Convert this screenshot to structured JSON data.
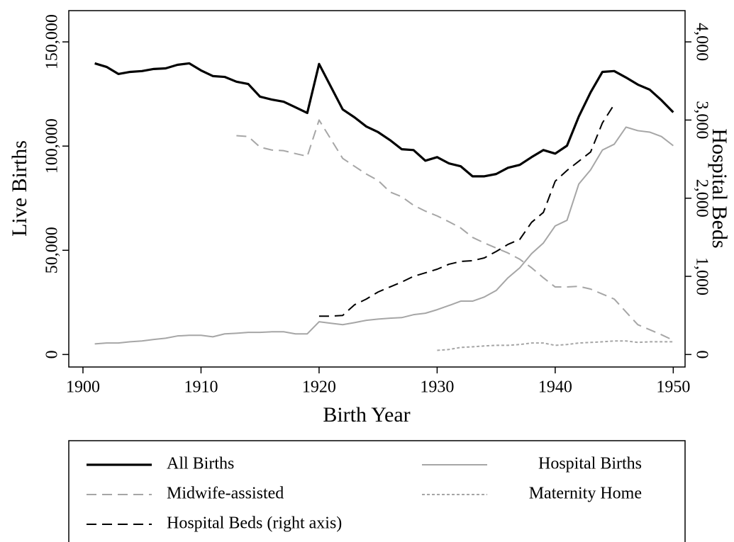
{
  "chart_data": {
    "type": "line",
    "x_label": "Birth Year",
    "y_label": "Live Births",
    "y2_label": "Hospital Beds",
    "x": [
      1901,
      1902,
      1903,
      1904,
      1905,
      1906,
      1907,
      1908,
      1909,
      1910,
      1911,
      1912,
      1913,
      1914,
      1915,
      1916,
      1917,
      1918,
      1919,
      1920,
      1921,
      1922,
      1923,
      1924,
      1925,
      1926,
      1927,
      1928,
      1929,
      1930,
      1931,
      1932,
      1933,
      1934,
      1935,
      1936,
      1937,
      1938,
      1939,
      1940,
      1941,
      1942,
      1943,
      1944,
      1945,
      1946,
      1947,
      1948,
      1949,
      1950
    ],
    "xlim": [
      1898.8,
      1951
    ],
    "xticks": [
      1900,
      1910,
      1920,
      1930,
      1940,
      1950
    ],
    "ylim": [
      -6000,
      165000
    ],
    "yticks": [
      0,
      {
        "value": 50000,
        "label": "50,000"
      },
      {
        "value": 100000,
        "label": "100,000"
      },
      {
        "value": 150000,
        "label": "150,000"
      }
    ],
    "y2lim": [
      -160,
      4400
    ],
    "y2ticks": [
      0,
      {
        "value": 1000,
        "label": "1,000"
      },
      {
        "value": 2000,
        "label": "2,000"
      },
      {
        "value": 3000,
        "label": "3,000"
      },
      {
        "value": 4000,
        "label": "4,000"
      }
    ],
    "grid": false,
    "legend": {
      "position": "bottom",
      "columns": 2
    },
    "series": [
      {
        "name": "All Births",
        "color": "#000000",
        "dash": "solid",
        "weight": "heavy",
        "values": [
          139700,
          138000,
          134600,
          135600,
          136000,
          137000,
          137300,
          139000,
          139700,
          136300,
          133600,
          133200,
          130900,
          129800,
          123700,
          122300,
          121300,
          118600,
          115900,
          139400,
          128500,
          117600,
          113800,
          109400,
          106700,
          102900,
          98500,
          98100,
          93000,
          94700,
          91700,
          90300,
          85500,
          85500,
          86600,
          89600,
          91000,
          94700,
          98100,
          96400,
          100200,
          114200,
          125800,
          135600,
          136000,
          132900,
          129500,
          127100,
          122000,
          116200
        ]
      },
      {
        "name": "Hospital Births",
        "color": "#a6a6a6",
        "dash": "solid",
        "weight": "normal",
        "values": [
          5100,
          5500,
          5500,
          6100,
          6500,
          7200,
          7800,
          8900,
          9200,
          9200,
          8500,
          9900,
          10200,
          10600,
          10600,
          10900,
          10900,
          9900,
          9900,
          15700,
          15000,
          14300,
          15300,
          16400,
          17000,
          17400,
          17700,
          19100,
          19800,
          21500,
          23500,
          25600,
          25600,
          27600,
          30700,
          36800,
          41600,
          48400,
          53500,
          61700,
          64400,
          81800,
          88600,
          98100,
          100900,
          109100,
          107400,
          106700,
          104600,
          100200
        ]
      },
      {
        "name": "Midwife-assisted",
        "color": "#a6a6a6",
        "dash": "dashed",
        "weight": "normal",
        "values": [
          null,
          null,
          null,
          null,
          null,
          null,
          null,
          null,
          null,
          null,
          null,
          null,
          105000,
          104600,
          99500,
          98100,
          97800,
          96400,
          95100,
          112500,
          103300,
          94100,
          90300,
          86600,
          83500,
          78000,
          75700,
          71600,
          68800,
          66500,
          63700,
          60700,
          56200,
          53500,
          51100,
          48700,
          45700,
          41600,
          36800,
          32400,
          32400,
          32700,
          31400,
          29000,
          26600,
          20400,
          14300,
          11900,
          9500,
          6800
        ]
      },
      {
        "name": "Maternity Home",
        "color": "#a6a6a6",
        "dash": "dotted",
        "weight": "normal",
        "values": [
          null,
          null,
          null,
          null,
          null,
          null,
          null,
          null,
          null,
          null,
          null,
          null,
          null,
          null,
          null,
          null,
          null,
          null,
          null,
          null,
          null,
          null,
          null,
          null,
          null,
          null,
          null,
          null,
          null,
          2000,
          2400,
          3400,
          3700,
          4100,
          4400,
          4400,
          4800,
          5500,
          5500,
          4400,
          4800,
          5500,
          5800,
          6100,
          6500,
          6500,
          5800,
          6100,
          6100,
          6100
        ]
      },
      {
        "name": "Hospital Beds (right axis)",
        "color": "#000000",
        "dash": "dashed",
        "weight": "normal",
        "axis": "y2",
        "values": [
          null,
          null,
          null,
          null,
          null,
          null,
          null,
          null,
          null,
          null,
          null,
          null,
          null,
          null,
          null,
          null,
          null,
          null,
          null,
          491,
          491,
          500,
          636,
          709,
          800,
          864,
          927,
          1000,
          1045,
          1091,
          1155,
          1191,
          1200,
          1236,
          1318,
          1409,
          1473,
          1691,
          1818,
          2218,
          2355,
          2473,
          2591,
          2964,
          3200,
          null,
          null,
          null,
          null,
          null
        ]
      }
    ]
  }
}
